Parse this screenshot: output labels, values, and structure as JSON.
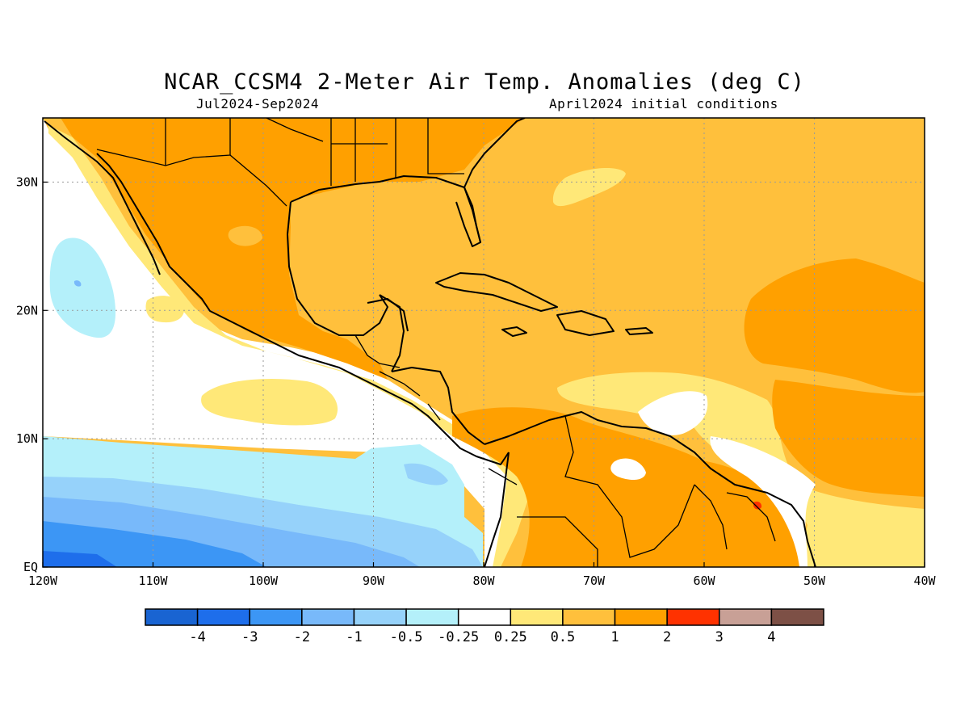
{
  "title": "NCAR_CCSM4 2-Meter Air Temp. Anomalies (deg C)",
  "subtitle_left": "Jul2024-Sep2024",
  "subtitle_right": "April2024 initial conditions",
  "map": {
    "lon_range": [
      -120,
      -40
    ],
    "lat_range": [
      0,
      35
    ],
    "lon_ticks": [
      {
        "value": -120,
        "label": "120W"
      },
      {
        "value": -110,
        "label": "110W"
      },
      {
        "value": -100,
        "label": "100W"
      },
      {
        "value": -90,
        "label": "90W"
      },
      {
        "value": -80,
        "label": "80W"
      },
      {
        "value": -70,
        "label": "70W"
      },
      {
        "value": -60,
        "label": "60W"
      },
      {
        "value": -50,
        "label": "50W"
      },
      {
        "value": -40,
        "label": "40W"
      }
    ],
    "lat_ticks": [
      {
        "value": 0,
        "label": "EQ"
      },
      {
        "value": 10,
        "label": "10N"
      },
      {
        "value": 20,
        "label": "20N"
      },
      {
        "value": 30,
        "label": "30N"
      }
    ],
    "grid": "dotted"
  },
  "colorbar": {
    "colors": [
      "#1964d2",
      "#1e6eeb",
      "#3c96f5",
      "#78b9fa",
      "#96d2fa",
      "#b4f0fa",
      "#ffffff",
      "#ffe878",
      "#ffc03c",
      "#ffa000",
      "#ff3200",
      "#c8a096",
      "#7d5046"
    ],
    "labels": [
      "-4",
      "-3",
      "-2",
      "-1",
      "-0.5",
      "-0.25",
      "0.25",
      "0.5",
      "1",
      "2",
      "3",
      "4"
    ]
  }
}
